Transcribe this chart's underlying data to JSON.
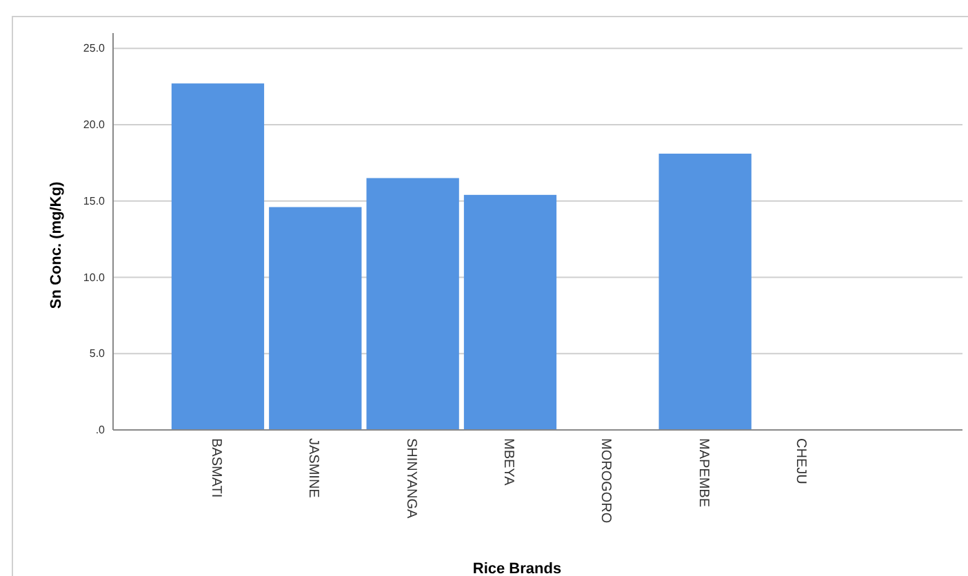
{
  "chart_data": {
    "type": "bar",
    "xlabel": "Rice Brands",
    "ylabel": "Sn Conc. (mg/Kg)",
    "categories": [
      "BASMATI",
      "JASMINE",
      "SHINYANGA",
      "MBEYA",
      "MOROGORO",
      "MAPEMBE",
      "CHEJU"
    ],
    "values": [
      22.7,
      14.6,
      16.5,
      15.4,
      0,
      18.1,
      0
    ],
    "color": "#5494e2",
    "ylim": [
      0,
      26
    ],
    "yticks": [
      {
        "value": 0,
        "label": ".0"
      },
      {
        "value": 5,
        "label": "5.0"
      },
      {
        "value": 10,
        "label": "10.0"
      },
      {
        "value": 15,
        "label": "15.0"
      },
      {
        "value": 20,
        "label": "20.0"
      },
      {
        "value": 25,
        "label": "25.0"
      }
    ],
    "grid": "y"
  }
}
